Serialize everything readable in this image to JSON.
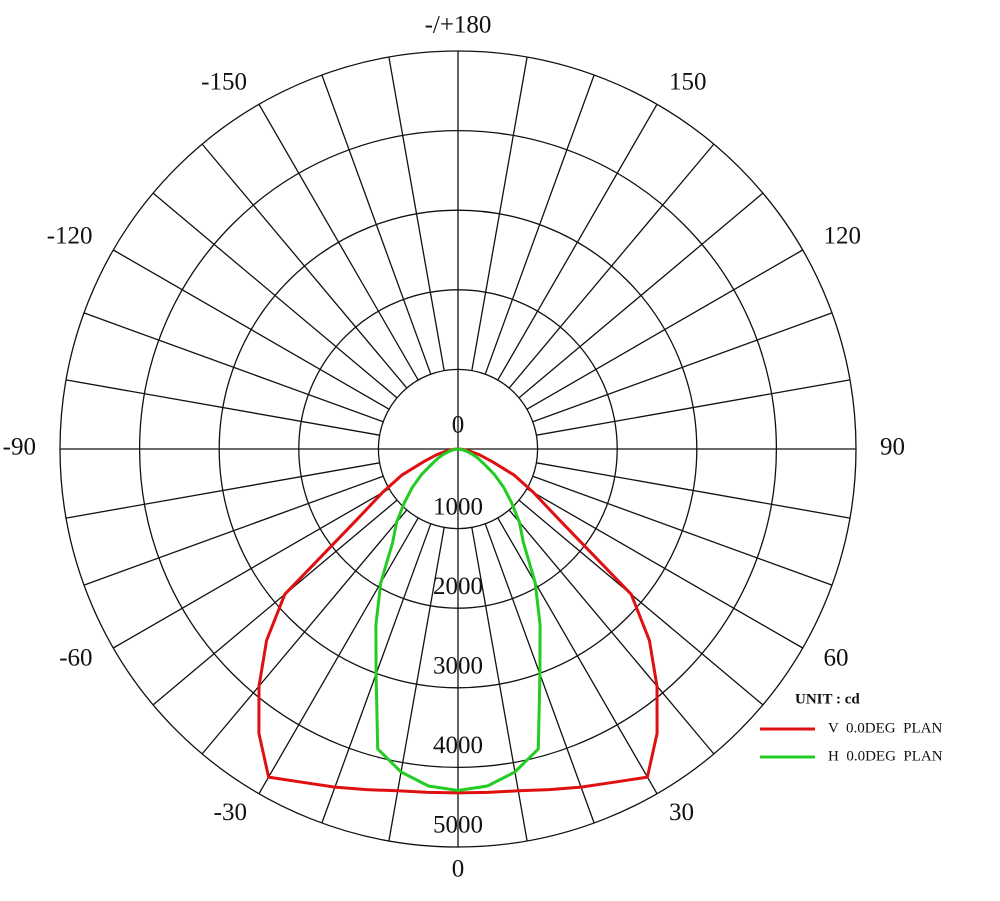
{
  "chart_data": {
    "type": "polar",
    "theta": [
      -90,
      -85,
      -80,
      -75,
      -70,
      -65,
      -60,
      -55,
      -50,
      -45,
      -40,
      -35,
      -30,
      -25,
      -20,
      -15,
      -10,
      -5,
      0,
      5,
      10,
      15,
      20,
      25,
      30,
      35,
      40,
      45,
      50,
      55,
      60,
      65,
      70,
      75,
      80,
      85,
      90
    ],
    "series": [
      {
        "name": "V  0.0DEG  PLAN",
        "color": "#e01010",
        "values": [
          0,
          60,
          150,
          280,
          450,
          780,
          1100,
          1560,
          2840,
          3400,
          3890,
          4360,
          4760,
          4620,
          4520,
          4430,
          4360,
          4330,
          4320,
          4330,
          4360,
          4430,
          4520,
          4620,
          4760,
          4360,
          3890,
          3400,
          2840,
          1560,
          1100,
          780,
          450,
          280,
          150,
          60,
          0
        ]
      },
      {
        "name": "H  0.0DEG  PLAN",
        "color": "#22cc22",
        "values": [
          0,
          20,
          60,
          120,
          190,
          280,
          380,
          560,
          750,
          950,
          1200,
          1430,
          1940,
          2440,
          3010,
          3900,
          4120,
          4250,
          4290,
          4250,
          4120,
          3900,
          3010,
          2440,
          1940,
          1430,
          1200,
          950,
          750,
          560,
          380,
          280,
          190,
          120,
          60,
          20,
          0
        ]
      }
    ],
    "rlim": [
      0,
      5000
    ],
    "rticks": [
      0,
      1000,
      2000,
      3000,
      4000,
      5000
    ],
    "thetaticks": [
      -150,
      -120,
      -90,
      -60,
      -30,
      0,
      30,
      60,
      90,
      120,
      150,
      {
        "value": 180,
        "label": "-/+180"
      }
    ],
    "legend_title": "UNIT : cd",
    "legend": "bottom-right"
  }
}
